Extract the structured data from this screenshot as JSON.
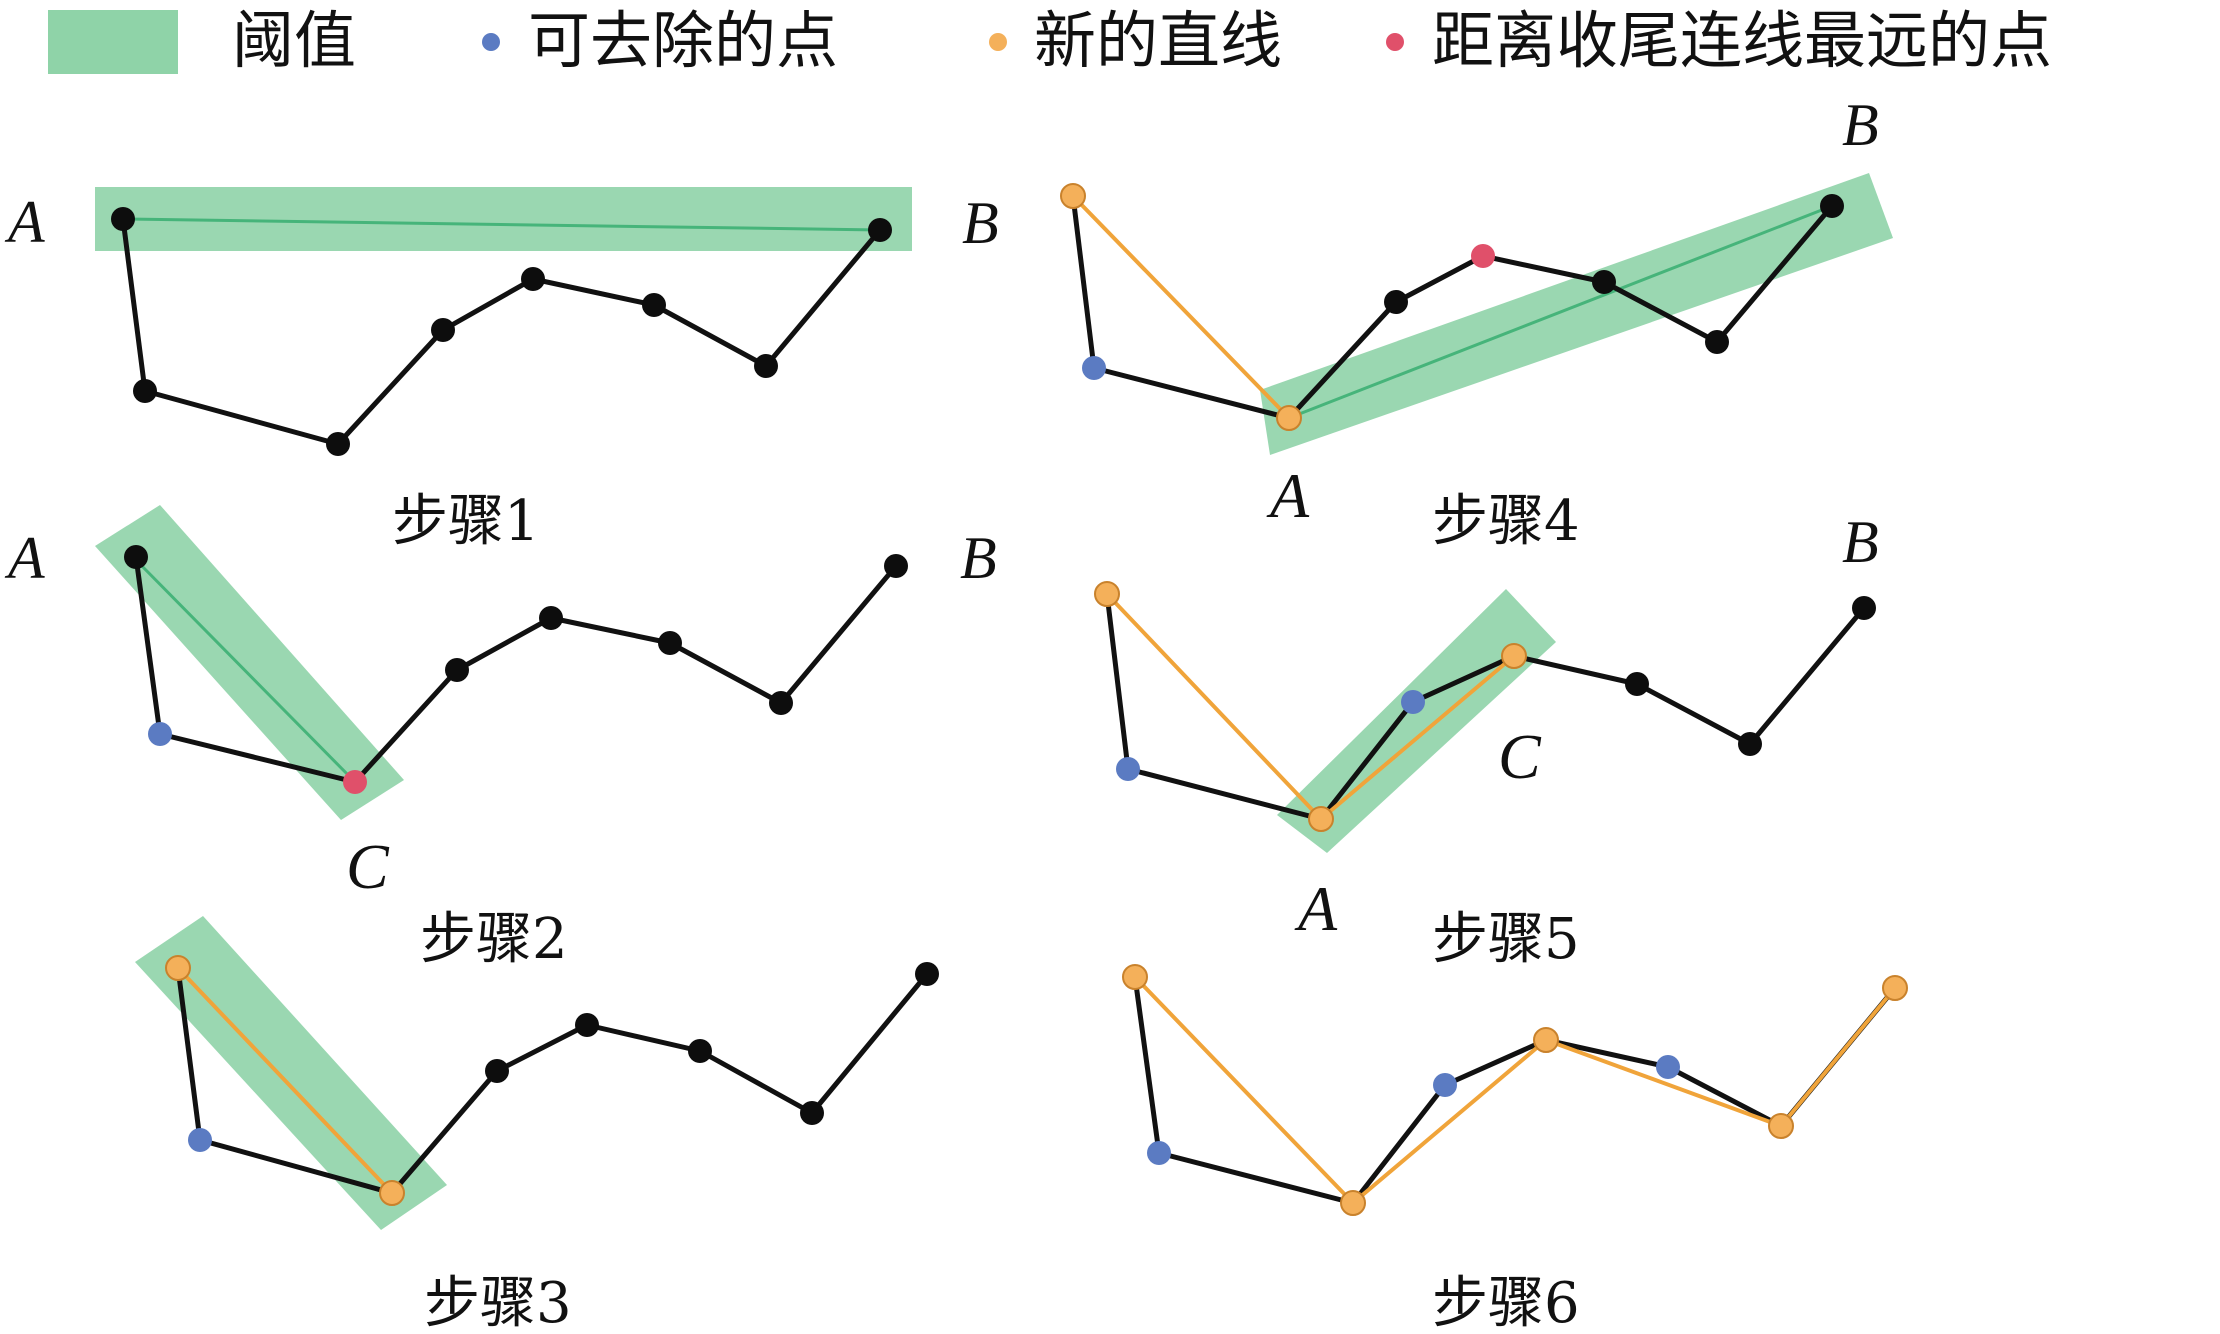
{
  "legend": {
    "threshold_label": "阈值",
    "removable_label": "可去除的点",
    "new_line_label": "新的直线",
    "farthest_label": "距离收尾连线最远的点"
  },
  "colors": {
    "threshold_band": "#8fd3a8",
    "threshold_axis": "#46b47a",
    "polyline": "#111111",
    "normal_point": "#0d0d0d",
    "removable_point": "#5b7bc2",
    "new_line": "#f0a43a",
    "new_point": "#f4b05a",
    "farthest_point": "#e0506a"
  },
  "steps": [
    {
      "caption": "步骤1",
      "labels": [
        "A"
      ]
    },
    {
      "caption": "步骤2",
      "labels": [
        "A",
        "B",
        "C"
      ]
    },
    {
      "caption": "步骤3",
      "labels": []
    },
    {
      "caption": "步骤4",
      "labels": [
        "B",
        "B",
        "A"
      ]
    },
    {
      "caption": "步骤5",
      "labels": [
        "B",
        "C",
        "A"
      ]
    },
    {
      "caption": "步骤6",
      "labels": []
    }
  ]
}
